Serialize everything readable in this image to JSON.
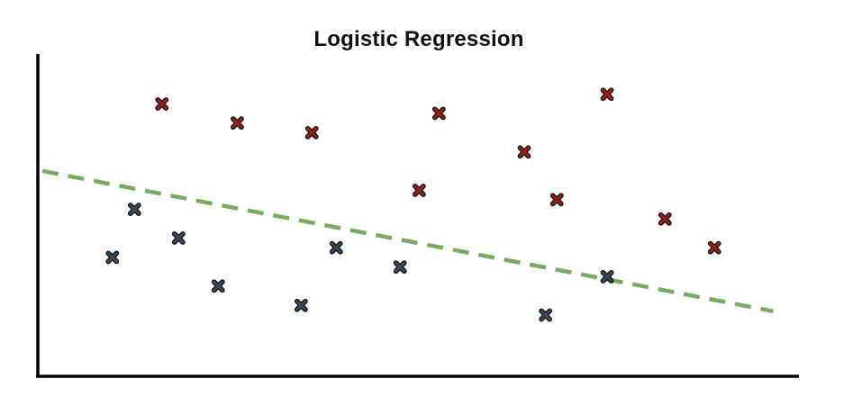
{
  "chart_data": {
    "type": "scatter",
    "title": "Logistic Regression",
    "xlabel": "",
    "ylabel": "",
    "xlim": [
      0,
      100
    ],
    "ylim": [
      0,
      100
    ],
    "grid": false,
    "series": [
      {
        "marker": "x",
        "color": "#9b1c1c",
        "points": [
          {
            "x": 16.3,
            "y": 84.5
          },
          {
            "x": 26.2,
            "y": 78.6
          },
          {
            "x": 36.0,
            "y": 75.6
          },
          {
            "x": 52.7,
            "y": 81.6
          },
          {
            "x": 74.8,
            "y": 87.5
          },
          {
            "x": 63.9,
            "y": 69.6
          },
          {
            "x": 50.1,
            "y": 57.7
          },
          {
            "x": 68.2,
            "y": 54.8
          },
          {
            "x": 82.4,
            "y": 48.8
          },
          {
            "x": 88.9,
            "y": 39.9
          }
        ]
      },
      {
        "marker": "x",
        "color": "#3a4a5c",
        "points": [
          {
            "x": 12.7,
            "y": 51.8
          },
          {
            "x": 9.8,
            "y": 36.9
          },
          {
            "x": 18.5,
            "y": 42.9
          },
          {
            "x": 23.7,
            "y": 28.0
          },
          {
            "x": 34.6,
            "y": 22.0
          },
          {
            "x": 39.2,
            "y": 39.9
          },
          {
            "x": 47.6,
            "y": 33.9
          },
          {
            "x": 66.7,
            "y": 19.0
          },
          {
            "x": 74.8,
            "y": 30.9
          }
        ]
      }
    ],
    "decision_boundary": {
      "style": "dashed",
      "color": "#7aaa62",
      "points": [
        {
          "x": 0.6,
          "y": 63.7
        },
        {
          "x": 96.6,
          "y": 20.2
        }
      ]
    }
  }
}
